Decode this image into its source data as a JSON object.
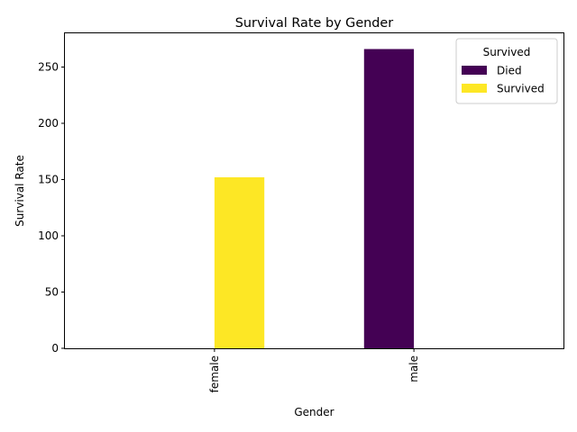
{
  "chart_data": {
    "type": "bar",
    "title": "Survival Rate by Gender",
    "xlabel": "Gender",
    "ylabel": "Survival Rate",
    "categories": [
      "female",
      "male"
    ],
    "series": [
      {
        "name": "Died",
        "values": [
          0,
          266
        ],
        "color": "#440154"
      },
      {
        "name": "Survived",
        "values": [
          152,
          0
        ],
        "color": "#fde725"
      }
    ],
    "ylim": [
      0,
      280
    ],
    "yticks": [
      0,
      50,
      100,
      150,
      200,
      250
    ],
    "legend": {
      "title": "Survived",
      "position": "top-right"
    },
    "grid": false
  }
}
